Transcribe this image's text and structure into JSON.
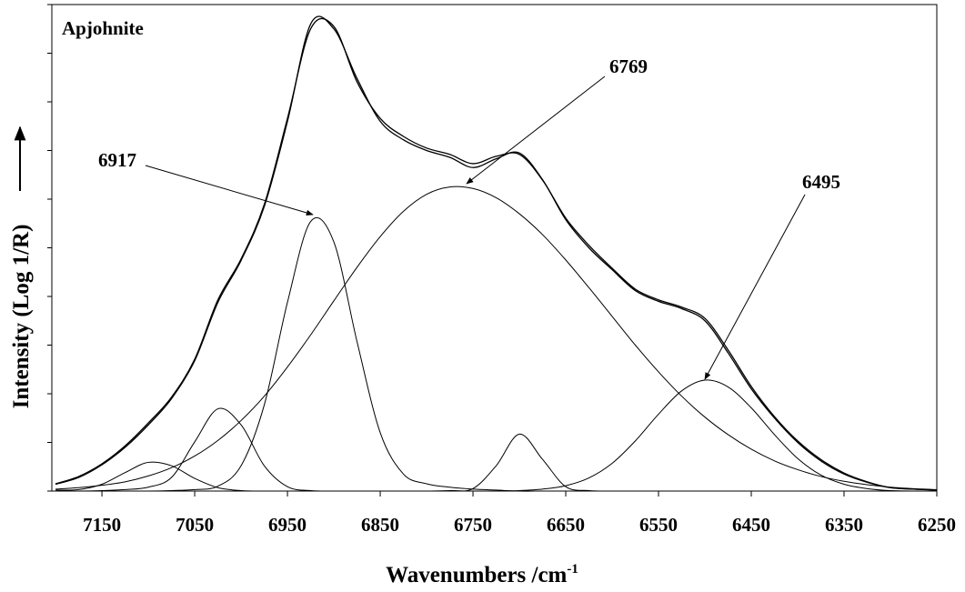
{
  "chart_data": {
    "type": "line",
    "title": "Apjohnite",
    "xlabel": {
      "text": "Wavenumbers /cm",
      "superscript": "-1"
    },
    "ylabel": "Intensity (Log 1/R)",
    "annotations": [
      {
        "text": "6917"
      },
      {
        "text": "6769"
      },
      {
        "text": "6495"
      }
    ],
    "x": [
      7200,
      7175,
      7150,
      7125,
      7100,
      7075,
      7050,
      7025,
      7000,
      6975,
      6950,
      6925,
      6900,
      6875,
      6850,
      6825,
      6800,
      6775,
      6750,
      6725,
      6700,
      6675,
      6650,
      6625,
      6600,
      6575,
      6550,
      6525,
      6500,
      6475,
      6450,
      6425,
      6400,
      6375,
      6350,
      6325,
      6300,
      6275,
      6250
    ],
    "series": [
      {
        "color": "#000000",
        "values": [
          0.015,
          0.03,
          0.056,
          0.093,
          0.14,
          0.193,
          0.271,
          0.393,
          0.477,
          0.589,
          0.766,
          0.95,
          0.955,
          0.841,
          0.766,
          0.729,
          0.705,
          0.692,
          0.673,
          0.688,
          0.692,
          0.639,
          0.561,
          0.505,
          0.458,
          0.415,
          0.393,
          0.378,
          0.355,
          0.29,
          0.215,
          0.153,
          0.103,
          0.065,
          0.037,
          0.019,
          0.007,
          0.004,
          0.002
        ]
      },
      {
        "color": "#000000",
        "values": [
          0.014,
          0.028,
          0.054,
          0.09,
          0.136,
          0.19,
          0.268,
          0.388,
          0.474,
          0.585,
          0.76,
          0.96,
          0.95,
          0.848,
          0.76,
          0.722,
          0.7,
          0.686,
          0.665,
          0.683,
          0.695,
          0.64,
          0.558,
          0.5,
          0.455,
          0.412,
          0.39,
          0.375,
          0.35,
          0.284,
          0.21,
          0.15,
          0.1,
          0.062,
          0.035,
          0.018,
          0.007,
          0.004,
          0.002
        ]
      },
      {
        "color": "#000000",
        "values": [
          0.002,
          0.003,
          0.014,
          0.038,
          0.059,
          0.052,
          0.026,
          0.007,
          0.001,
          0,
          0,
          0,
          0,
          0,
          0,
          0,
          0,
          0,
          0,
          0,
          0,
          0,
          0,
          0,
          0,
          0,
          0,
          0,
          0,
          0,
          0,
          0,
          0,
          0,
          0,
          0,
          0,
          0,
          0
        ]
      },
      {
        "color": "#000000",
        "values": [
          0,
          0,
          0.001,
          0.003,
          0.008,
          0.028,
          0.101,
          0.169,
          0.136,
          0.052,
          0.009,
          0.001,
          0,
          0,
          0,
          0,
          0,
          0,
          0,
          0,
          0,
          0,
          0,
          0,
          0,
          0,
          0,
          0,
          0,
          0,
          0,
          0,
          0,
          0,
          0,
          0,
          0,
          0,
          0
        ]
      },
      {
        "color": "#000000",
        "values": [
          0,
          0,
          0,
          0,
          0,
          0.001,
          0.003,
          0.01,
          0.052,
          0.177,
          0.388,
          0.554,
          0.512,
          0.307,
          0.12,
          0.035,
          0.015,
          0.008,
          0.004,
          0.002,
          0,
          0,
          0,
          0,
          0,
          0,
          0,
          0,
          0,
          0,
          0,
          0,
          0,
          0,
          0,
          0,
          0,
          0,
          0
        ]
      },
      {
        "color": "#000000",
        "values": [
          0.004,
          0.007,
          0.012,
          0.019,
          0.031,
          0.048,
          0.072,
          0.104,
          0.145,
          0.195,
          0.255,
          0.321,
          0.391,
          0.46,
          0.523,
          0.575,
          0.61,
          0.625,
          0.622,
          0.603,
          0.57,
          0.527,
          0.475,
          0.418,
          0.359,
          0.3,
          0.245,
          0.195,
          0.152,
          0.116,
          0.086,
          0.062,
          0.044,
          0.03,
          0.02,
          0.013,
          0.008,
          0.005,
          0.003
        ]
      },
      {
        "color": "#000000",
        "values": [
          0,
          0,
          0,
          0,
          0,
          0,
          0,
          0,
          0,
          0,
          0,
          0,
          0,
          0,
          0,
          0,
          0,
          0.001,
          0.005,
          0.052,
          0.117,
          0.065,
          0.009,
          0.001,
          0,
          0,
          0,
          0,
          0,
          0,
          0,
          0,
          0,
          0,
          0,
          0,
          0,
          0,
          0
        ]
      },
      {
        "color": "#000000",
        "values": [
          0,
          0,
          0,
          0,
          0,
          0,
          0,
          0,
          0,
          0,
          0,
          0,
          0,
          0,
          0,
          0,
          0,
          0,
          0,
          0,
          0.001,
          0.004,
          0.011,
          0.027,
          0.057,
          0.103,
          0.158,
          0.206,
          0.228,
          0.214,
          0.171,
          0.116,
          0.067,
          0.033,
          0.014,
          0.005,
          0.001,
          0,
          0
        ]
      }
    ],
    "xlim": [
      7204,
      6250
    ],
    "xticks": [
      7150,
      7050,
      6950,
      6850,
      6750,
      6650,
      6550,
      6450,
      6350,
      6250
    ],
    "ylim": [
      0,
      1
    ],
    "yticks": [
      0,
      0.1,
      0.2,
      0.3,
      0.4,
      0.5,
      0.6,
      0.7,
      0.8,
      0.9,
      1
    ],
    "grid": false
  }
}
